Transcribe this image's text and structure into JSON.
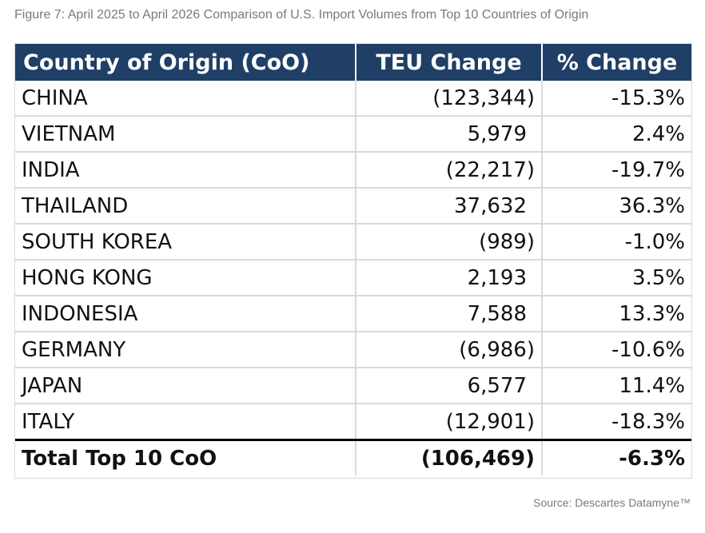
{
  "caption": "Figure 7: April 2025 to April 2026 Comparison of U.S. Import Volumes from Top 10 Countries of Origin",
  "table": {
    "headers": [
      "Country of Origin (CoO)",
      "TEU Change",
      "% Change"
    ],
    "rows": [
      {
        "country": "CHINA",
        "teu": "(123,344)",
        "pct": "-15.3%"
      },
      {
        "country": "VIETNAM",
        "teu": "5,979",
        "pct": "2.4%"
      },
      {
        "country": "INDIA",
        "teu": "(22,217)",
        "pct": "-19.7%"
      },
      {
        "country": "THAILAND",
        "teu": "37,632",
        "pct": "36.3%"
      },
      {
        "country": "SOUTH KOREA",
        "teu": "(989)",
        "pct": "-1.0%"
      },
      {
        "country": "HONG KONG",
        "teu": "2,193",
        "pct": "3.5%"
      },
      {
        "country": "INDONESIA",
        "teu": "7,588",
        "pct": "13.3%"
      },
      {
        "country": "GERMANY",
        "teu": "(6,986)",
        "pct": "-10.6%"
      },
      {
        "country": "JAPAN",
        "teu": "6,577",
        "pct": "11.4%"
      },
      {
        "country": "ITALY",
        "teu": "(12,901)",
        "pct": "-18.3%"
      }
    ],
    "total": {
      "country": "Total Top 10 CoO",
      "teu": "(106,469)",
      "pct": "-6.3%"
    }
  },
  "source": "Source: Descartes Datamyne™",
  "colors": {
    "header_bg": "#1f3f66",
    "header_text": "#ffffff",
    "grid": "#d9d9d9",
    "caption_text": "#7a7a7a"
  }
}
